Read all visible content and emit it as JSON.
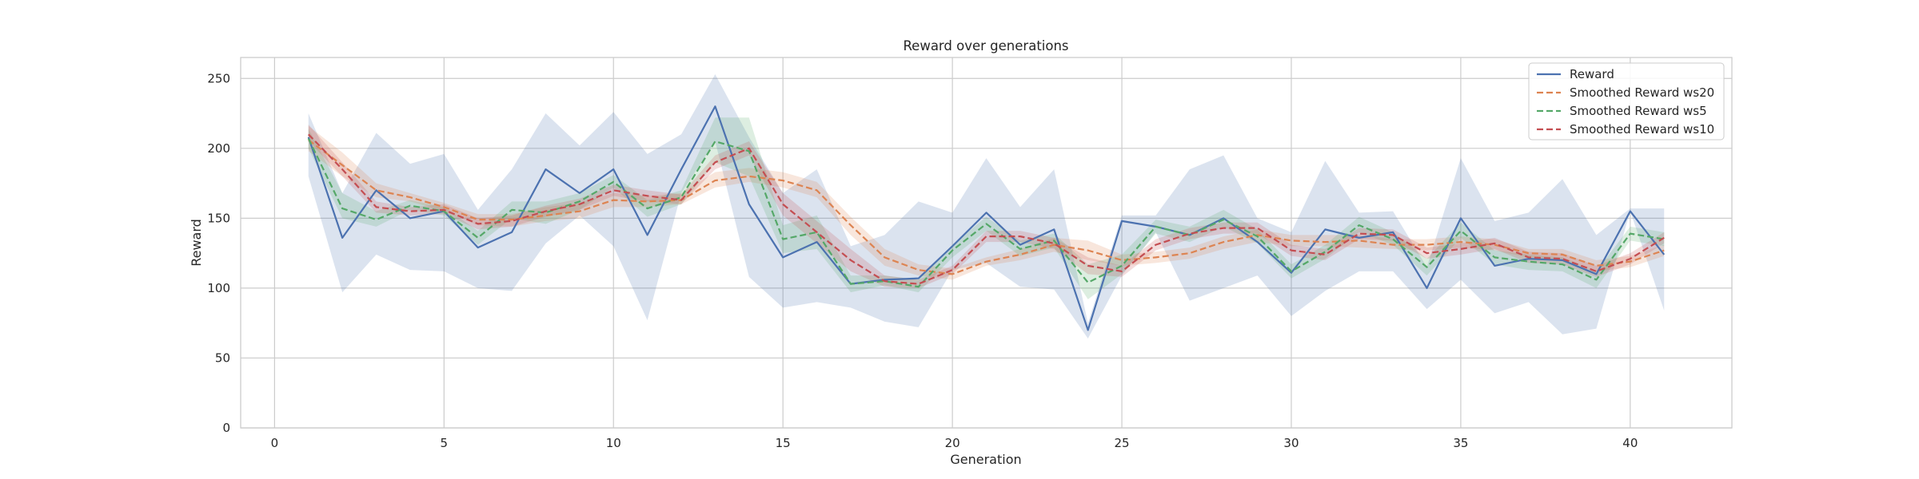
{
  "chart_data": {
    "type": "line",
    "title": "Reward over generations",
    "xlabel": "Generation",
    "ylabel": "Reward",
    "xlim": [
      -1,
      43
    ],
    "ylim": [
      0,
      265
    ],
    "xticks": [
      0,
      5,
      10,
      15,
      20,
      25,
      30,
      35,
      40
    ],
    "yticks": [
      0,
      50,
      100,
      150,
      200,
      250
    ],
    "grid": true,
    "legend_position": "top-right",
    "x": [
      1,
      2,
      3,
      4,
      5,
      6,
      7,
      8,
      9,
      10,
      11,
      12,
      13,
      14,
      15,
      16,
      17,
      18,
      19,
      20,
      21,
      22,
      23,
      24,
      25,
      26,
      27,
      28,
      29,
      30,
      31,
      32,
      33,
      34,
      35,
      36,
      37,
      38,
      39,
      40,
      41
    ],
    "series": [
      {
        "name": "Reward",
        "color": "#4c72b0",
        "dash": "solid",
        "values": [
          208,
          136,
          170,
          150,
          155,
          129,
          140,
          185,
          168,
          185,
          138,
          185,
          230,
          160,
          122,
          133,
          103,
          106,
          107,
          130,
          154,
          131,
          142,
          70,
          148,
          144,
          138,
          150,
          133,
          111,
          142,
          136,
          140,
          100,
          150,
          116,
          121,
          120,
          110,
          155,
          124
        ],
        "band_lower": [
          180,
          97,
          124,
          113,
          112,
          100,
          98,
          132,
          152,
          130,
          77,
          168,
          205,
          108,
          86,
          90,
          86,
          76,
          72,
          113,
          118,
          101,
          99,
          64,
          109,
          140,
          91,
          100,
          109,
          80,
          98,
          112,
          112,
          85,
          106,
          82,
          90,
          67,
          71,
          155,
          84
        ],
        "band_upper": [
          225,
          168,
          211,
          189,
          196,
          156,
          185,
          225,
          202,
          226,
          196,
          210,
          253,
          208,
          168,
          185,
          130,
          138,
          162,
          154,
          193,
          158,
          185,
          75,
          152,
          152,
          185,
          195,
          150,
          140,
          191,
          154,
          155,
          115,
          193,
          148,
          154,
          178,
          138,
          157,
          157
        ]
      },
      {
        "name": "Smoothed Reward ws20",
        "color": "#dd8452",
        "dash": "dashed",
        "values": [
          206,
          188,
          170,
          165,
          158,
          149,
          149,
          152,
          155,
          163,
          162,
          163,
          177,
          180,
          177,
          170,
          145,
          122,
          113,
          110,
          119,
          124,
          131,
          127,
          120,
          122,
          125,
          133,
          138,
          134,
          133,
          134,
          131,
          131,
          133,
          131,
          125,
          124,
          116,
          119,
          127
        ],
        "band_lower": [
          198,
          180,
          165,
          162,
          155,
          145,
          144,
          148,
          150,
          158,
          158,
          160,
          172,
          176,
          172,
          165,
          138,
          116,
          109,
          106,
          116,
          120,
          126,
          120,
          116,
          118,
          121,
          128,
          133,
          130,
          130,
          129,
          128,
          127,
          129,
          127,
          122,
          121,
          112,
          115,
          123
        ],
        "band_upper": [
          216,
          197,
          175,
          168,
          161,
          153,
          153,
          158,
          161,
          168,
          166,
          168,
          183,
          186,
          183,
          176,
          151,
          128,
          117,
          114,
          122,
          128,
          136,
          134,
          124,
          126,
          129,
          137,
          142,
          138,
          138,
          138,
          135,
          135,
          137,
          135,
          128,
          128,
          120,
          123,
          131
        ]
      },
      {
        "name": "Smoothed Reward ws5",
        "color": "#55a868",
        "dash": "dashed",
        "values": [
          207,
          157,
          149,
          159,
          155,
          136,
          156,
          154,
          162,
          176,
          157,
          165,
          205,
          198,
          135,
          140,
          103,
          105,
          101,
          127,
          146,
          128,
          134,
          104,
          116,
          144,
          138,
          149,
          137,
          112,
          126,
          145,
          135,
          115,
          141,
          122,
          119,
          117,
          106,
          139,
          135
        ],
        "band_lower": [
          200,
          150,
          144,
          156,
          152,
          131,
          150,
          146,
          156,
          172,
          151,
          160,
          190,
          180,
          125,
          128,
          97,
          102,
          97,
          122,
          141,
          123,
          129,
          92,
          110,
          139,
          133,
          144,
          132,
          107,
          121,
          140,
          131,
          109,
          136,
          117,
          113,
          112,
          100,
          134,
          130
        ],
        "band_upper": [
          214,
          168,
          155,
          163,
          158,
          141,
          162,
          162,
          168,
          181,
          163,
          170,
          222,
          222,
          145,
          152,
          109,
          109,
          106,
          131,
          151,
          134,
          139,
          117,
          124,
          149,
          144,
          156,
          142,
          117,
          131,
          151,
          140,
          121,
          147,
          127,
          124,
          122,
          112,
          144,
          140
        ]
      },
      {
        "name": "Smoothed Reward ws10",
        "color": "#c44e52",
        "dash": "dashed",
        "values": [
          210,
          185,
          158,
          155,
          156,
          146,
          148,
          155,
          160,
          170,
          166,
          163,
          190,
          200,
          160,
          140,
          120,
          105,
          103,
          113,
          137,
          137,
          132,
          116,
          112,
          131,
          139,
          143,
          143,
          127,
          124,
          139,
          138,
          125,
          128,
          132,
          122,
          121,
          112,
          121,
          136
        ],
        "band_lower": [
          205,
          180,
          154,
          152,
          153,
          142,
          144,
          151,
          156,
          166,
          162,
          160,
          185,
          195,
          152,
          132,
          112,
          101,
          100,
          110,
          133,
          133,
          128,
          110,
          108,
          127,
          135,
          139,
          139,
          123,
          120,
          135,
          134,
          121,
          124,
          128,
          118,
          117,
          108,
          117,
          132
        ],
        "band_upper": [
          217,
          190,
          162,
          158,
          160,
          150,
          152,
          159,
          164,
          174,
          170,
          167,
          195,
          205,
          168,
          148,
          128,
          109,
          106,
          116,
          141,
          141,
          136,
          122,
          116,
          135,
          143,
          147,
          147,
          131,
          128,
          143,
          142,
          129,
          132,
          136,
          126,
          125,
          116,
          125,
          140
        ]
      }
    ]
  }
}
